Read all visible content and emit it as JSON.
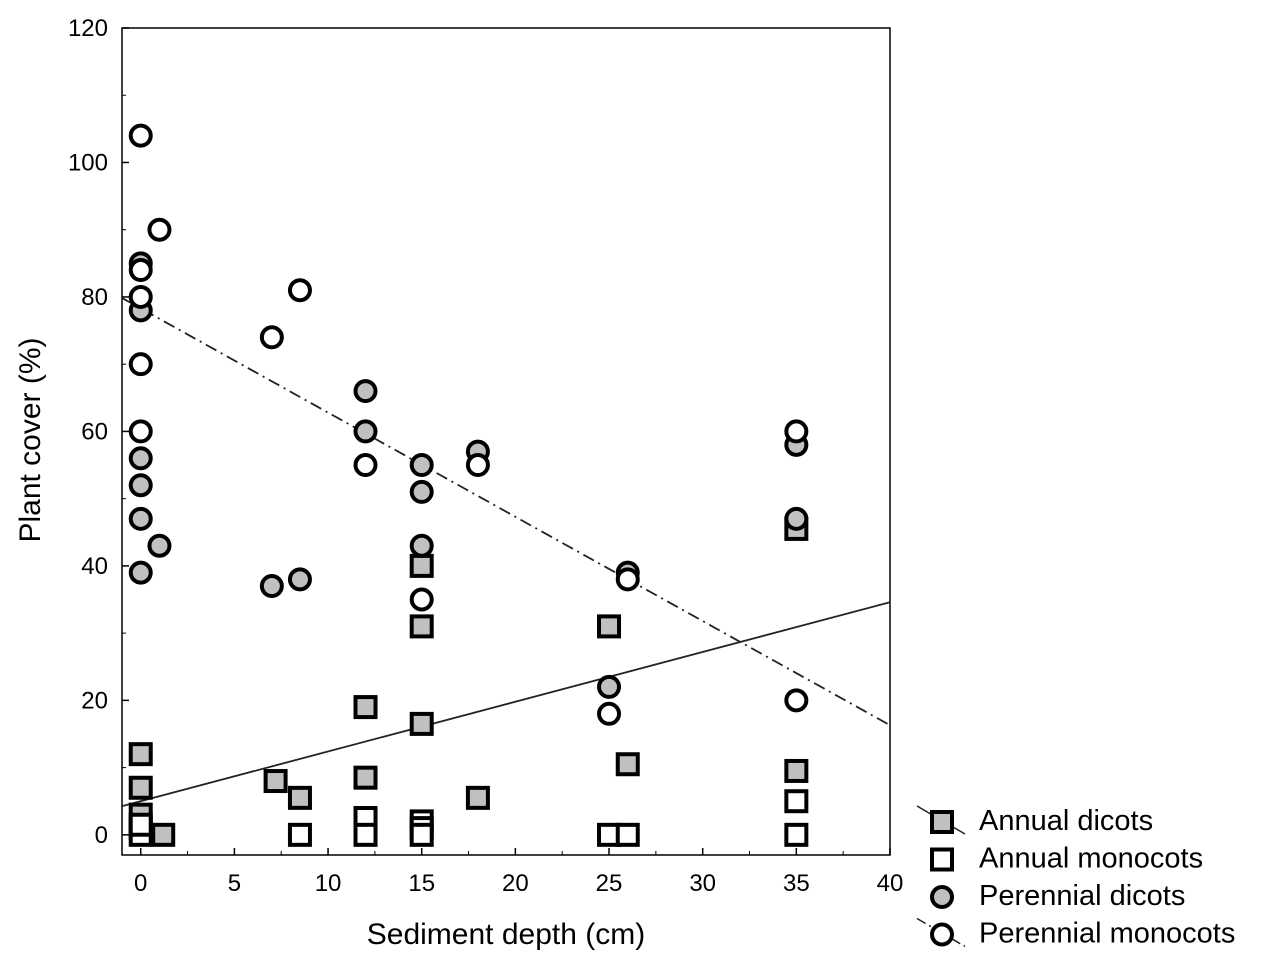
{
  "chart_data": {
    "type": "scatter",
    "title": "",
    "xlabel": "Sediment depth (cm)",
    "ylabel": "Plant cover (%)",
    "xlim": [
      -1,
      40
    ],
    "ylim": [
      -3,
      120
    ],
    "xticks": [
      0,
      5,
      10,
      15,
      20,
      25,
      30,
      35,
      40
    ],
    "yticks": [
      0,
      20,
      40,
      60,
      80,
      100,
      120
    ],
    "grid": false,
    "legend_position": "bottom-right-outside",
    "series": [
      {
        "name": "Annual dicots",
        "marker": "square",
        "fill": "#c0c0c0",
        "points": [
          [
            0,
            12
          ],
          [
            0,
            7
          ],
          [
            0,
            3
          ],
          [
            0,
            1
          ],
          [
            1.2,
            0
          ],
          [
            7.2,
            8
          ],
          [
            8.5,
            5.5
          ],
          [
            12,
            19
          ],
          [
            12,
            8.5
          ],
          [
            15,
            40
          ],
          [
            15,
            31
          ],
          [
            15,
            16.5
          ],
          [
            18,
            5.5
          ],
          [
            25,
            31
          ],
          [
            26,
            10.5
          ],
          [
            35,
            45.5
          ],
          [
            35,
            9.5
          ]
        ],
        "fit": {
          "style": "solid",
          "intercept": 5.0,
          "slope": 0.74
        }
      },
      {
        "name": "Annual monocots",
        "marker": "square",
        "fill": "#ffffff",
        "points": [
          [
            0,
            0
          ],
          [
            0,
            1.5
          ],
          [
            8.5,
            0
          ],
          [
            12,
            2.5
          ],
          [
            12,
            0
          ],
          [
            15,
            2
          ],
          [
            15,
            1
          ],
          [
            15,
            0
          ],
          [
            25,
            0
          ],
          [
            26,
            0
          ],
          [
            35,
            5
          ],
          [
            35,
            0
          ]
        ]
      },
      {
        "name": "Perennial dicots",
        "marker": "circle",
        "fill": "#c0c0c0",
        "points": [
          [
            0,
            85
          ],
          [
            0,
            78
          ],
          [
            0,
            56
          ],
          [
            0,
            52
          ],
          [
            0,
            47
          ],
          [
            0,
            39
          ],
          [
            1,
            43
          ],
          [
            7,
            37
          ],
          [
            8.5,
            38
          ],
          [
            12,
            66
          ],
          [
            12,
            60
          ],
          [
            15,
            55
          ],
          [
            15,
            51
          ],
          [
            15,
            43
          ],
          [
            18,
            57
          ],
          [
            26,
            39
          ],
          [
            25,
            22
          ],
          [
            35,
            58
          ],
          [
            35,
            47
          ]
        ]
      },
      {
        "name": "Perennial monocots",
        "marker": "circle",
        "fill": "#ffffff",
        "points": [
          [
            0,
            104
          ],
          [
            1,
            90
          ],
          [
            0,
            84
          ],
          [
            0,
            80
          ],
          [
            0,
            70
          ],
          [
            0,
            60
          ],
          [
            7,
            74
          ],
          [
            8.5,
            81
          ],
          [
            12,
            55
          ],
          [
            15,
            35
          ],
          [
            18,
            55
          ],
          [
            26,
            38
          ],
          [
            25,
            18
          ],
          [
            35,
            60
          ],
          [
            35,
            20
          ]
        ],
        "fit": {
          "style": "dashdot",
          "intercept": 78.3,
          "slope": -1.55
        }
      }
    ]
  }
}
